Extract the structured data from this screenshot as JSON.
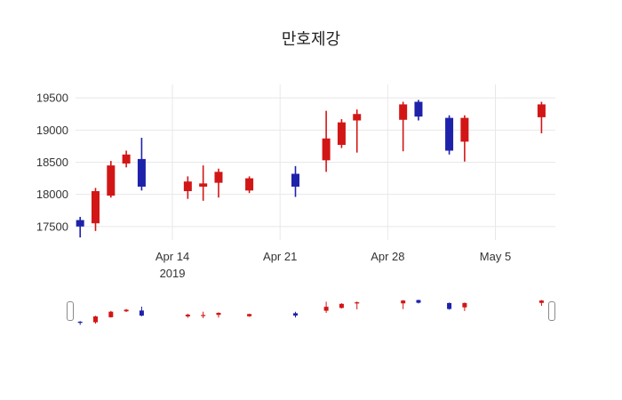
{
  "title": "만호제강",
  "chart_data": {
    "type": "candlestick",
    "title": "만호제강",
    "up_color": "#d21616",
    "down_color": "#1e22aa",
    "grid_color": "#e8e8e8",
    "tick_color": "#333333",
    "ylabel": "",
    "xlabel": "",
    "grid": true,
    "rangeslider": true,
    "y_ticks": [
      17500,
      18000,
      18500,
      19000,
      19500
    ],
    "y_range": [
      17290,
      19710
    ],
    "x_range_days": [
      -0.3,
      30.9
    ],
    "x_ticks": [
      {
        "day": 6,
        "label": "Apr 14",
        "sublabel": "2019"
      },
      {
        "day": 13,
        "label": "Apr 21",
        "sublabel": ""
      },
      {
        "day": 20,
        "label": "Apr 28",
        "sublabel": ""
      },
      {
        "day": 27,
        "label": "May 5",
        "sublabel": ""
      }
    ],
    "candles": [
      {
        "date": "2019-04-08",
        "day": 0,
        "open": 17600,
        "high": 17650,
        "low": 17330,
        "close": 17500
      },
      {
        "date": "2019-04-09",
        "day": 1,
        "open": 17550,
        "high": 18100,
        "low": 17430,
        "close": 18050
      },
      {
        "date": "2019-04-10",
        "day": 2,
        "open": 17980,
        "high": 18520,
        "low": 17950,
        "close": 18450
      },
      {
        "date": "2019-04-11",
        "day": 3,
        "open": 18480,
        "high": 18680,
        "low": 18420,
        "close": 18620
      },
      {
        "date": "2019-04-12",
        "day": 4,
        "open": 18550,
        "high": 18880,
        "low": 18060,
        "close": 18120
      },
      {
        "date": "2019-04-15",
        "day": 7,
        "open": 18050,
        "high": 18280,
        "low": 17930,
        "close": 18200
      },
      {
        "date": "2019-04-16",
        "day": 8,
        "open": 18120,
        "high": 18450,
        "low": 17900,
        "close": 18170
      },
      {
        "date": "2019-04-17",
        "day": 9,
        "open": 18180,
        "high": 18400,
        "low": 17950,
        "close": 18350
      },
      {
        "date": "2019-04-19",
        "day": 11,
        "open": 18060,
        "high": 18280,
        "low": 18020,
        "close": 18250
      },
      {
        "date": "2019-04-22",
        "day": 14,
        "open": 18320,
        "high": 18440,
        "low": 17960,
        "close": 18120
      },
      {
        "date": "2019-04-24",
        "day": 16,
        "open": 18530,
        "high": 19300,
        "low": 18350,
        "close": 18870
      },
      {
        "date": "2019-04-25",
        "day": 17,
        "open": 18770,
        "high": 19170,
        "low": 18720,
        "close": 19120
      },
      {
        "date": "2019-04-26",
        "day": 18,
        "open": 19150,
        "high": 19320,
        "low": 18650,
        "close": 19250
      },
      {
        "date": "2019-04-29",
        "day": 21,
        "open": 19160,
        "high": 19440,
        "low": 18670,
        "close": 19400
      },
      {
        "date": "2019-04-30",
        "day": 22,
        "open": 19440,
        "high": 19470,
        "low": 19150,
        "close": 19210
      },
      {
        "date": "2019-05-02",
        "day": 24,
        "open": 19190,
        "high": 19230,
        "low": 18620,
        "close": 18680
      },
      {
        "date": "2019-05-03",
        "day": 25,
        "open": 18820,
        "high": 19230,
        "low": 18510,
        "close": 19190
      },
      {
        "date": "2019-05-08",
        "day": 30,
        "open": 19200,
        "high": 19440,
        "low": 18950,
        "close": 19400
      }
    ]
  }
}
